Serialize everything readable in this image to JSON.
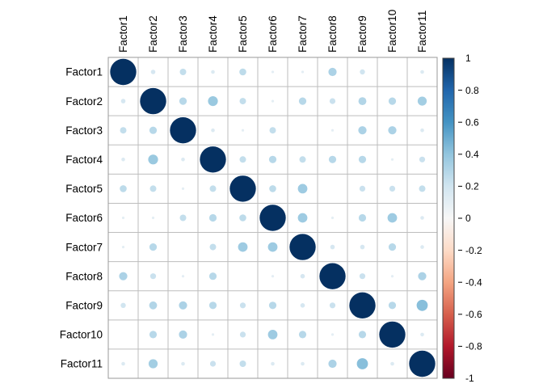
{
  "chart_data": {
    "type": "heatmap",
    "subtype": "correlation-circle-matrix",
    "title": "",
    "labels": [
      "Factor1",
      "Factor2",
      "Factor3",
      "Factor4",
      "Factor5",
      "Factor6",
      "Factor7",
      "Factor8",
      "Factor9",
      "Factor10",
      "Factor11"
    ],
    "matrix": [
      [
        1.0,
        0.03,
        0.06,
        0.02,
        0.07,
        0.01,
        0.01,
        0.1,
        0.04,
        0.0,
        0.02
      ],
      [
        0.03,
        1.0,
        0.08,
        0.14,
        0.06,
        0.01,
        0.08,
        0.05,
        0.09,
        0.08,
        0.12
      ],
      [
        0.06,
        0.08,
        1.0,
        0.02,
        0.01,
        0.06,
        0.0,
        0.01,
        0.1,
        0.1,
        0.02
      ],
      [
        0.02,
        0.14,
        0.02,
        1.0,
        0.06,
        0.08,
        0.06,
        0.08,
        0.08,
        0.01,
        0.05
      ],
      [
        0.07,
        0.06,
        0.01,
        0.06,
        1.0,
        0.07,
        0.13,
        0.0,
        0.05,
        0.05,
        0.06
      ],
      [
        0.01,
        0.01,
        0.06,
        0.08,
        0.07,
        1.0,
        0.13,
        0.01,
        0.08,
        0.13,
        0.02
      ],
      [
        0.01,
        0.08,
        0.0,
        0.06,
        0.13,
        0.13,
        1.0,
        0.03,
        0.03,
        0.08,
        0.02
      ],
      [
        0.1,
        0.05,
        0.01,
        0.08,
        0.0,
        0.01,
        0.03,
        1.0,
        0.05,
        0.01,
        0.1
      ],
      [
        0.04,
        0.09,
        0.1,
        0.08,
        0.05,
        0.08,
        0.03,
        0.05,
        1.0,
        0.08,
        0.18
      ],
      [
        0.0,
        0.08,
        0.1,
        0.01,
        0.05,
        0.13,
        0.08,
        0.01,
        0.08,
        1.0,
        0.02
      ],
      [
        0.02,
        0.12,
        0.02,
        0.05,
        0.06,
        0.02,
        0.02,
        0.1,
        0.18,
        0.02,
        1.0
      ]
    ],
    "value_range": [
      -1,
      1
    ],
    "grid": true,
    "legend_position": "right",
    "colorbar": {
      "tick_labels": [
        "1",
        "0.8",
        "0.6",
        "0.4",
        "0.2",
        "0",
        "-0.2",
        "-0.4",
        "-0.6",
        "-0.8",
        "-1"
      ],
      "tick_values": [
        1,
        0.8,
        0.6,
        0.4,
        0.2,
        0,
        -0.2,
        -0.4,
        -0.6,
        -0.8,
        -1
      ],
      "max_color": "#053061",
      "mid_color": "#F7F7F7",
      "min_color": "#67001F"
    },
    "palette_rdbu": [
      "#053061",
      "#2166AC",
      "#4393C3",
      "#92C5DE",
      "#D1E5F0",
      "#F7F7F7",
      "#FDDBC7",
      "#F4A582",
      "#D6604D",
      "#B2182B",
      "#67001F"
    ],
    "grid_color": "#bdbdbd",
    "border_color": "#9a9a9a"
  }
}
